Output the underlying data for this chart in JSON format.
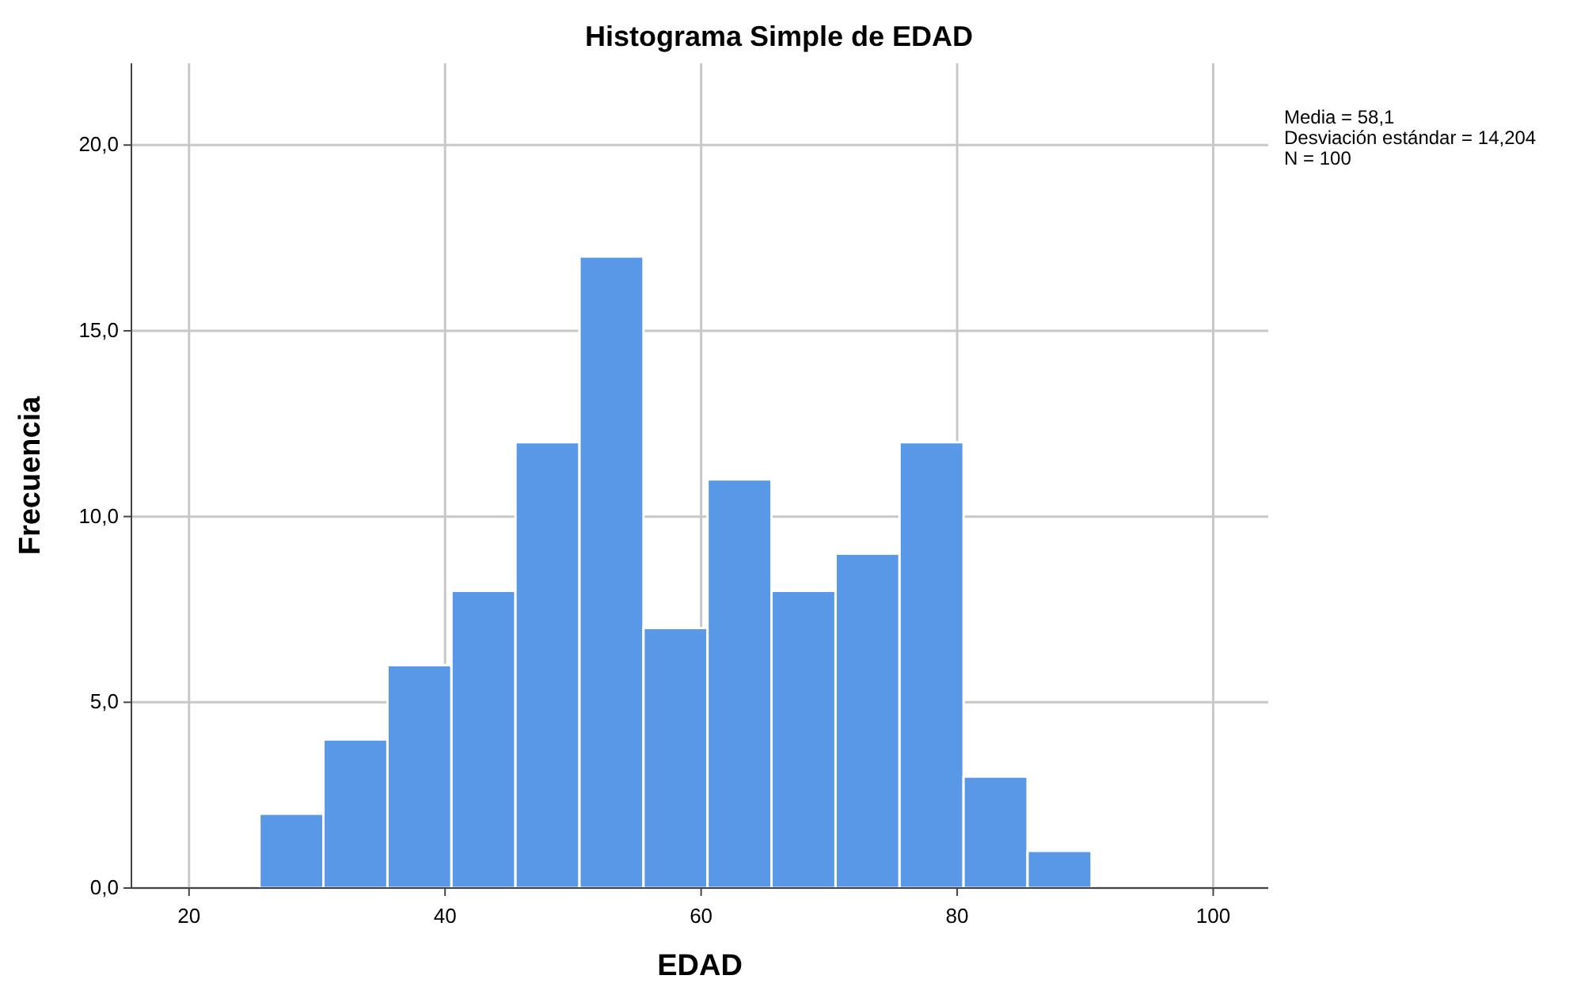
{
  "chart_data": {
    "type": "histogram",
    "title": "Histograma Simple de EDAD",
    "xlabel": "EDAD",
    "ylabel": "Frecuencia",
    "bins": [
      25.5,
      30.5,
      35.5,
      40.5,
      45.5,
      50.5,
      55.5,
      60.5,
      65.5,
      70.5,
      75.5,
      80.5,
      85.5,
      90.5
    ],
    "values": [
      2,
      4,
      6,
      8,
      12,
      17,
      7,
      11,
      8,
      9,
      12,
      3,
      1
    ],
    "color": "#5898e6",
    "xlim": [
      15.5,
      104.3
    ],
    "ylim": [
      0,
      22.2
    ],
    "xticks": [
      20,
      40,
      60,
      80,
      100
    ],
    "yticks": [
      {
        "value": 0,
        "label": "0,0"
      },
      {
        "value": 5,
        "label": "5,0"
      },
      {
        "value": 10,
        "label": "10,0"
      },
      {
        "value": 15,
        "label": "15,0"
      },
      {
        "value": 20,
        "label": "20,0"
      }
    ],
    "grid": true,
    "annotations": [
      "Media = 58,1",
      "Desviación estándar = 14,204",
      "N = 100"
    ]
  }
}
